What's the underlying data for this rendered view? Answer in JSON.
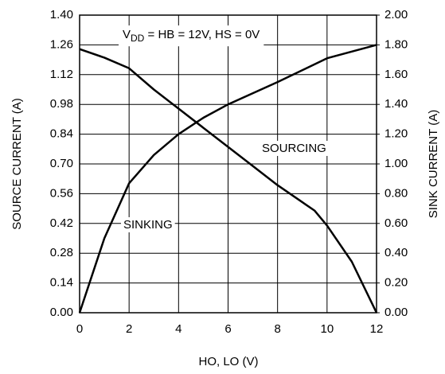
{
  "chart_data": {
    "type": "line",
    "annotation": {
      "main": "V",
      "sub": "DD",
      "rest": " = HB = 12V, HS = 0V"
    },
    "xlabel": "HO, LO (V)",
    "ylabel": "SOURCE CURRENT (A)",
    "y2label": "SINK CURRENT (A)",
    "xlim": [
      0,
      12
    ],
    "xticks": [
      0,
      2,
      4,
      6,
      8,
      10,
      12
    ],
    "ylim": [
      0,
      1.4
    ],
    "yticks": [
      {
        "value": 0,
        "label": "0.00"
      },
      0.14,
      0.28,
      0.42,
      0.56,
      {
        "value": 0.7,
        "label": "0.70"
      },
      0.84,
      0.98,
      1.12,
      1.26,
      {
        "value": 1.4,
        "label": "1.40"
      }
    ],
    "y2lim": [
      0,
      2
    ],
    "y2ticks": [
      {
        "value": 0,
        "label": "0.00"
      },
      {
        "value": 0.2,
        "label": "0.20"
      },
      {
        "value": 0.4,
        "label": "0.40"
      },
      {
        "value": 0.6,
        "label": "0.60"
      },
      {
        "value": 0.8,
        "label": "0.80"
      },
      {
        "value": 1,
        "label": "1.00"
      },
      {
        "value": 1.2,
        "label": "1.20"
      },
      {
        "value": 1.4,
        "label": "1.40"
      },
      {
        "value": 1.6,
        "label": "1.60"
      },
      {
        "value": 1.8,
        "label": "1.80"
      },
      {
        "value": 2,
        "label": "2.00"
      }
    ],
    "grid": true,
    "series": [
      {
        "name": "SOURCING",
        "color": "#000000",
        "x": [
          0,
          1,
          2,
          3,
          4,
          5,
          6,
          7,
          8,
          9,
          9.5,
          10,
          11,
          12
        ],
        "values": [
          1.24,
          1.2,
          1.15,
          1.05,
          0.96,
          0.87,
          0.78,
          0.69,
          0.6,
          0.52,
          0.48,
          0.41,
          0.24,
          0
        ]
      },
      {
        "name": "SINKING",
        "color": "#000000",
        "axis": "y2",
        "x": [
          0,
          1,
          2,
          3,
          4,
          5,
          6,
          8,
          10,
          12
        ],
        "values": [
          0,
          0.5,
          0.87,
          1.06,
          1.2,
          1.31,
          1.4,
          1.55,
          1.71,
          1.8
        ]
      }
    ]
  }
}
